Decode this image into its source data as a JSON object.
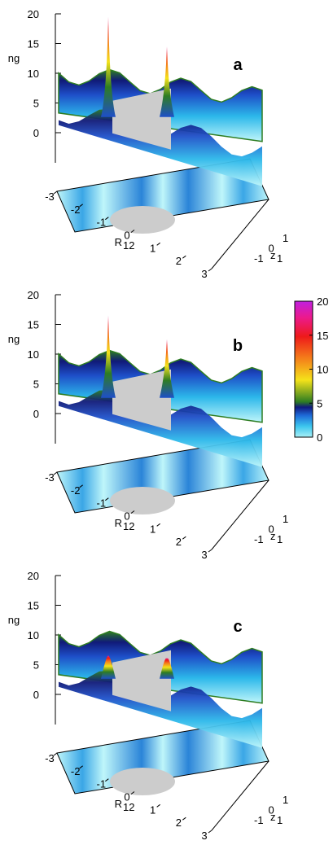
{
  "chart_data": [
    {
      "type": "surface3d",
      "panel_label": "a",
      "zlabel": "ng",
      "xlabel": "R",
      "xlabel_sub": "12",
      "ylabel": "z",
      "ylabel_sub": "1",
      "zlim": [
        0,
        20
      ],
      "z_ticks": [
        "0",
        "5",
        "10",
        "15",
        "20"
      ],
      "x_ticks": [
        "-3",
        "-2",
        "-1",
        "0",
        "1",
        "2",
        "3"
      ],
      "y_ticks": [
        "-1",
        "0",
        "1"
      ],
      "peak_heights": [
        19.5,
        14.5
      ],
      "peak_positions_R12": [
        -0.85,
        0.85
      ]
    },
    {
      "type": "surface3d",
      "panel_label": "b",
      "zlabel": "ng",
      "xlabel": "R",
      "xlabel_sub": "12",
      "ylabel": "z",
      "ylabel_sub": "1",
      "zlim": [
        0,
        20
      ],
      "z_ticks": [
        "0",
        "5",
        "10",
        "15",
        "20"
      ],
      "x_ticks": [
        "-3",
        "-2",
        "-1",
        "0",
        "1",
        "2",
        "3"
      ],
      "y_ticks": [
        "-1",
        "0",
        "1"
      ],
      "peak_heights": [
        16.5,
        12.5
      ],
      "peak_positions_R12": [
        -0.85,
        0.85
      ]
    },
    {
      "type": "surface3d",
      "panel_label": "c",
      "zlabel": "ng",
      "xlabel": "R",
      "xlabel_sub": "12",
      "ylabel": "z",
      "ylabel_sub": "1",
      "zlim": [
        0,
        20
      ],
      "z_ticks": [
        "0",
        "5",
        "10",
        "15",
        "20"
      ],
      "x_ticks": [
        "-3",
        "-2",
        "-1",
        "0",
        "1",
        "2",
        "3"
      ],
      "y_ticks": [
        "-1",
        "0",
        "1"
      ],
      "peak_heights": [
        6.5,
        6.0
      ],
      "peak_positions_R12": [
        -0.5,
        0.55
      ]
    }
  ],
  "colorbar": {
    "ticks": [
      "0",
      "5",
      "10",
      "15",
      "20"
    ],
    "range": [
      0,
      20
    ],
    "colors": [
      "#a8f0f6",
      "#1fb6e6",
      "#1e3fb8",
      "#11197e",
      "#2e7d22",
      "#f4e21a",
      "#f47e1a",
      "#ee1a1a",
      "#ec1a8c",
      "#c020e0"
    ]
  }
}
